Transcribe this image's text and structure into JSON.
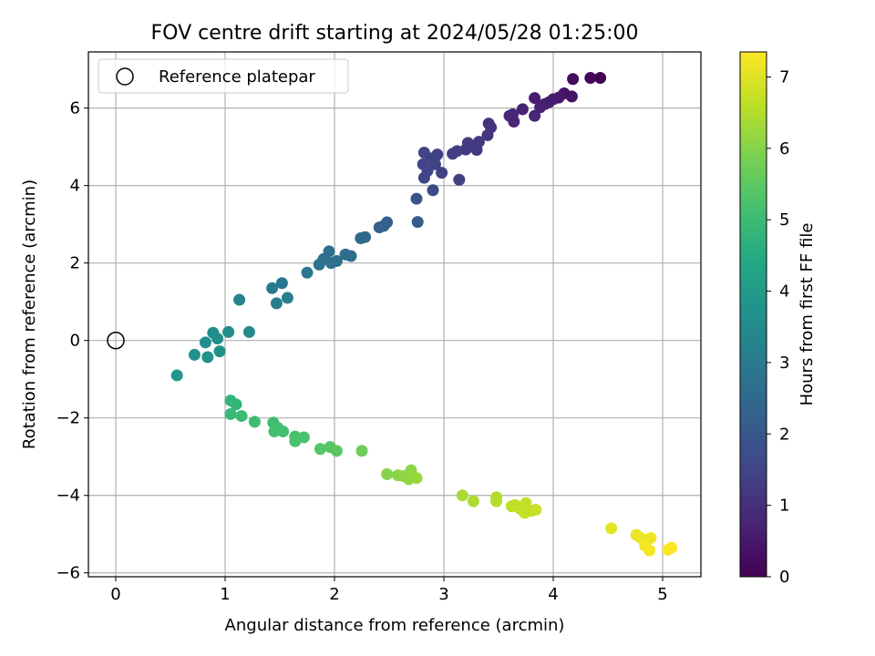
{
  "chart_data": {
    "type": "scatter",
    "title": "FOV centre drift starting at 2024/05/28 01:25:00",
    "xlabel": "Angular distance from reference (arcmin)",
    "ylabel": "Rotation from reference (arcmin)",
    "xlim": [
      -0.25,
      5.35
    ],
    "ylim": [
      -6.1,
      7.45
    ],
    "xticks": [
      0,
      1,
      2,
      3,
      4,
      5
    ],
    "yticks": [
      -6,
      -4,
      -2,
      0,
      2,
      4,
      6
    ],
    "grid": true,
    "legend": {
      "placement": "top-left",
      "entries": [
        "Reference platepar"
      ]
    },
    "reference_point": {
      "label": "Reference platepar",
      "x": 0,
      "y": 0,
      "marker": "open-circle"
    },
    "colorbar": {
      "label": "Hours from first FF file",
      "colormap": "viridis",
      "range": [
        0,
        7.35
      ],
      "ticks": [
        0,
        1,
        2,
        3,
        4,
        5,
        6,
        7
      ]
    },
    "series": [
      {
        "points": [
          [
            4.43,
            6.78
          ],
          [
            4.34,
            6.78
          ],
          [
            4.18,
            6.75
          ],
          [
            4.1,
            6.38
          ],
          [
            4.17,
            6.3
          ],
          [
            4.05,
            6.27
          ],
          [
            4.0,
            6.23
          ],
          [
            3.96,
            6.15
          ],
          [
            3.92,
            6.1
          ],
          [
            3.88,
            6.02
          ],
          [
            3.83,
            6.26
          ],
          [
            3.72,
            5.97
          ],
          [
            3.83,
            5.8
          ],
          [
            3.63,
            5.84
          ],
          [
            3.6,
            5.8
          ],
          [
            3.64,
            5.65
          ],
          [
            3.41,
            5.6
          ],
          [
            3.43,
            5.5
          ],
          [
            3.4,
            5.3
          ],
          [
            3.32,
            5.13
          ],
          [
            3.22,
            5.1
          ],
          [
            3.3,
            4.92
          ],
          [
            3.2,
            4.93
          ],
          [
            3.12,
            4.89
          ],
          [
            3.08,
            4.82
          ],
          [
            2.94,
            4.8
          ],
          [
            2.88,
            4.7
          ],
          [
            2.92,
            4.55
          ],
          [
            2.85,
            4.38
          ],
          [
            2.98,
            4.33
          ],
          [
            2.82,
            4.2
          ],
          [
            2.81,
            4.55
          ],
          [
            2.82,
            4.85
          ],
          [
            2.9,
            3.88
          ],
          [
            3.14,
            4.15
          ],
          [
            2.75,
            3.66
          ],
          [
            2.76,
            3.06
          ],
          [
            2.48,
            3.05
          ],
          [
            2.45,
            2.96
          ],
          [
            2.41,
            2.92
          ],
          [
            2.28,
            2.67
          ],
          [
            2.24,
            2.64
          ],
          [
            2.15,
            2.18
          ],
          [
            2.1,
            2.22
          ],
          [
            2.02,
            2.05
          ],
          [
            1.97,
            2.0
          ],
          [
            1.95,
            2.3
          ],
          [
            1.9,
            2.1
          ],
          [
            1.86,
            1.96
          ],
          [
            1.75,
            1.75
          ],
          [
            1.52,
            1.48
          ],
          [
            1.43,
            1.35
          ],
          [
            1.57,
            1.1
          ],
          [
            1.47,
            0.96
          ],
          [
            1.13,
            1.05
          ],
          [
            1.22,
            0.22
          ],
          [
            1.03,
            0.22
          ],
          [
            0.89,
            0.2
          ],
          [
            0.93,
            0.05
          ],
          [
            0.82,
            -0.05
          ],
          [
            0.95,
            -0.28
          ],
          [
            0.72,
            -0.37
          ],
          [
            0.84,
            -0.43
          ],
          [
            0.56,
            -0.9
          ],
          [
            1.05,
            -1.55
          ],
          [
            1.1,
            -1.65
          ],
          [
            1.05,
            -1.9
          ],
          [
            1.15,
            -1.95
          ],
          [
            1.27,
            -2.1
          ],
          [
            1.44,
            -2.12
          ],
          [
            1.48,
            -2.25
          ],
          [
            1.53,
            -2.35
          ],
          [
            1.45,
            -2.35
          ],
          [
            1.64,
            -2.48
          ],
          [
            1.72,
            -2.5
          ],
          [
            1.64,
            -2.6
          ],
          [
            1.96,
            -2.75
          ],
          [
            2.02,
            -2.85
          ],
          [
            1.87,
            -2.8
          ],
          [
            2.25,
            -2.85
          ],
          [
            2.48,
            -3.45
          ],
          [
            2.58,
            -3.48
          ],
          [
            2.63,
            -3.5
          ],
          [
            2.7,
            -3.35
          ],
          [
            2.68,
            -3.58
          ],
          [
            2.75,
            -3.55
          ],
          [
            3.17,
            -4.0
          ],
          [
            3.27,
            -4.15
          ],
          [
            3.48,
            -4.05
          ],
          [
            3.48,
            -4.15
          ],
          [
            3.62,
            -4.28
          ],
          [
            3.65,
            -4.25
          ],
          [
            3.7,
            -4.35
          ],
          [
            3.75,
            -4.2
          ],
          [
            3.8,
            -4.4
          ],
          [
            3.84,
            -4.37
          ],
          [
            3.74,
            -4.45
          ],
          [
            4.53,
            -4.85
          ],
          [
            4.76,
            -5.02
          ],
          [
            4.8,
            -5.1
          ],
          [
            4.89,
            -5.1
          ],
          [
            4.84,
            -5.3
          ],
          [
            4.88,
            -5.42
          ],
          [
            5.05,
            -5.4
          ],
          [
            5.08,
            -5.35
          ]
        ],
        "hours": [
          0.02,
          0.1,
          0.2,
          0.4,
          0.35,
          0.5,
          0.55,
          0.6,
          0.62,
          0.68,
          0.55,
          0.7,
          0.75,
          0.8,
          0.82,
          0.78,
          1.0,
          1.05,
          1.1,
          1.2,
          1.25,
          1.22,
          1.28,
          1.3,
          1.35,
          1.38,
          1.42,
          1.45,
          1.5,
          1.4,
          1.52,
          1.48,
          1.46,
          1.6,
          1.35,
          1.9,
          2.1,
          2.2,
          2.25,
          2.3,
          2.45,
          2.5,
          2.6,
          2.62,
          2.68,
          2.7,
          2.66,
          2.72,
          2.75,
          2.85,
          2.95,
          3.0,
          3.1,
          3.05,
          3.3,
          3.5,
          3.55,
          3.6,
          3.62,
          3.65,
          3.68,
          3.72,
          3.75,
          3.85,
          4.8,
          4.82,
          4.9,
          4.95,
          5.0,
          5.05,
          5.08,
          5.12,
          5.1,
          5.2,
          5.25,
          5.22,
          5.4,
          5.45,
          5.38,
          5.7,
          6.0,
          6.05,
          6.1,
          6.08,
          6.15,
          6.2,
          6.4,
          6.45,
          6.5,
          6.52,
          6.6,
          6.62,
          6.65,
          6.68,
          6.72,
          6.75,
          6.7,
          7.05,
          7.12,
          7.15,
          7.2,
          7.22,
          7.25,
          7.3,
          7.35
        ]
      }
    ]
  }
}
